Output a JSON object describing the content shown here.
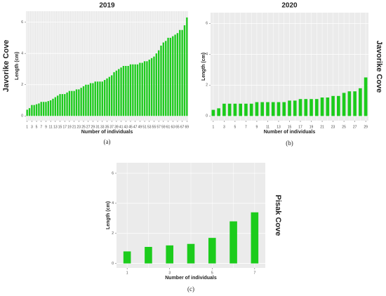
{
  "chart_data": [
    {
      "type": "bar",
      "title": "2019",
      "site_label": "Javorike Cove",
      "ylabel": "Length (cm)",
      "xlabel": "Number of individuals",
      "caption": "(a)",
      "categories": [
        "1",
        null,
        "3",
        null,
        "5",
        null,
        "7",
        null,
        "9",
        null,
        "11",
        null,
        "13",
        null,
        "15",
        null,
        "17",
        null,
        "19",
        null,
        "21",
        null,
        "23",
        null,
        "25",
        null,
        "27",
        null,
        "29",
        null,
        "31",
        null,
        "33",
        null,
        "35",
        null,
        "37",
        null,
        "39",
        null,
        "41",
        null,
        "43",
        null,
        "45",
        null,
        "47",
        null,
        "49",
        null,
        "51",
        null,
        "53",
        null,
        "55",
        null,
        "57",
        null,
        "59",
        null,
        "61",
        null,
        "63",
        null,
        "65",
        null,
        "67",
        null,
        "69"
      ],
      "values": [
        0.4,
        0.5,
        0.7,
        0.7,
        0.75,
        0.8,
        0.9,
        0.9,
        0.9,
        0.95,
        1.0,
        1.1,
        1.2,
        1.3,
        1.4,
        1.4,
        1.4,
        1.5,
        1.6,
        1.6,
        1.6,
        1.7,
        1.7,
        1.8,
        1.9,
        2.0,
        2.0,
        2.1,
        2.1,
        2.2,
        2.2,
        2.2,
        2.2,
        2.3,
        2.4,
        2.5,
        2.6,
        2.8,
        2.9,
        3.0,
        3.1,
        3.2,
        3.2,
        3.2,
        3.3,
        3.3,
        3.3,
        3.3,
        3.4,
        3.4,
        3.5,
        3.5,
        3.6,
        3.7,
        3.8,
        4.0,
        4.2,
        4.5,
        4.7,
        4.8,
        5.0,
        5.0,
        5.1,
        5.2,
        5.3,
        5.5,
        5.5,
        5.8,
        6.3
      ],
      "color": "#1ccc1c",
      "ylim": [
        -0.3,
        6.7
      ],
      "yticks": [
        0,
        2,
        4,
        6
      ],
      "grid": true
    },
    {
      "type": "bar",
      "title": "2020",
      "site_label": "Javorike Cove",
      "ylabel": "Length (cm)",
      "xlabel": "Number of individuals",
      "caption": "(b)",
      "categories": [
        "1",
        null,
        "3",
        null,
        "5",
        null,
        "7",
        null,
        "9",
        null,
        "11",
        null,
        "13",
        null,
        "15",
        null,
        "17",
        null,
        "19",
        null,
        "21",
        null,
        "23",
        null,
        "25",
        null,
        "27",
        null,
        "29"
      ],
      "values": [
        0.4,
        0.5,
        0.8,
        0.8,
        0.8,
        0.8,
        0.8,
        0.8,
        0.9,
        0.9,
        0.9,
        0.9,
        0.9,
        0.9,
        1.0,
        1.0,
        1.1,
        1.1,
        1.1,
        1.1,
        1.2,
        1.2,
        1.3,
        1.3,
        1.5,
        1.6,
        1.6,
        1.8,
        2.5
      ],
      "color": "#1ccc1c",
      "ylim": [
        -0.3,
        6.7
      ],
      "yticks": [
        0,
        2,
        4,
        6
      ],
      "grid": true
    },
    {
      "type": "bar",
      "site_label": "Pisak Cove",
      "ylabel": "Length (cm)",
      "xlabel": "Number of individuals",
      "caption": "(c)",
      "categories": [
        "1",
        null,
        "3",
        null,
        "5",
        null,
        "7"
      ],
      "values": [
        0.8,
        1.1,
        1.2,
        1.3,
        1.7,
        2.8,
        3.4
      ],
      "color": "#1ccc1c",
      "ylim": [
        -0.3,
        6.7
      ],
      "yticks": [
        0,
        2,
        4,
        6
      ],
      "grid": true
    }
  ]
}
